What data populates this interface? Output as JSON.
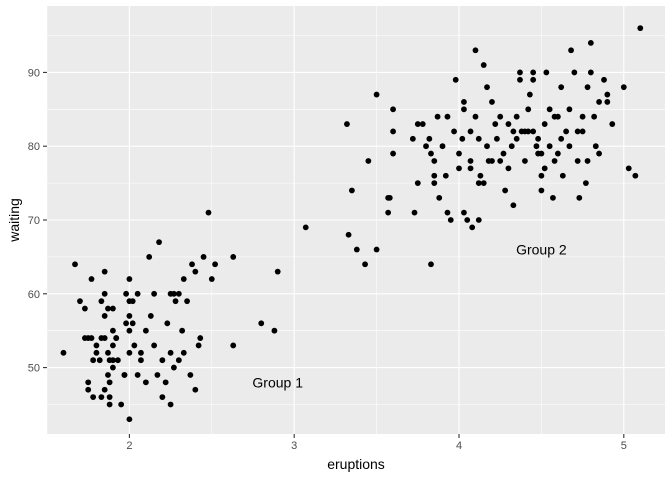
{
  "chart_data": {
    "type": "scatter",
    "xlabel": "eruptions",
    "ylabel": "waiting",
    "xlim": [
      1.5,
      5.25
    ],
    "ylim": [
      41,
      99
    ],
    "x_ticks": [
      2,
      3,
      4,
      5
    ],
    "y_ticks": [
      50,
      60,
      70,
      80,
      90
    ],
    "grid": true,
    "legend": "none",
    "colors": {
      "panel": "#ebebeb",
      "grid_major": "#ffffff",
      "point": "#000000"
    },
    "annotations": [
      {
        "label": "Group 1",
        "x": 2.9,
        "y": 48
      },
      {
        "label": "Group 2",
        "x": 4.5,
        "y": 66
      }
    ],
    "points": [
      [
        1.6,
        52
      ],
      [
        1.67,
        64
      ],
      [
        1.7,
        59
      ],
      [
        1.73,
        54
      ],
      [
        1.75,
        54
      ],
      [
        1.75,
        48
      ],
      [
        1.75,
        47
      ],
      [
        1.77,
        54
      ],
      [
        1.77,
        62
      ],
      [
        1.78,
        46
      ],
      [
        1.8,
        52
      ],
      [
        1.8,
        53
      ],
      [
        1.82,
        51
      ],
      [
        1.83,
        59
      ],
      [
        1.83,
        46
      ],
      [
        1.83,
        54
      ],
      [
        1.85,
        54
      ],
      [
        1.85,
        47
      ],
      [
        1.85,
        60
      ],
      [
        1.85,
        63
      ],
      [
        1.85,
        57
      ],
      [
        1.87,
        49
      ],
      [
        1.87,
        52
      ],
      [
        1.87,
        58
      ],
      [
        1.88,
        51
      ],
      [
        1.88,
        48
      ],
      [
        1.88,
        45
      ],
      [
        1.88,
        46
      ],
      [
        1.9,
        53
      ],
      [
        1.9,
        55
      ],
      [
        1.9,
        51
      ],
      [
        1.9,
        50
      ],
      [
        1.9,
        58
      ],
      [
        1.92,
        54
      ],
      [
        1.93,
        51
      ],
      [
        1.95,
        45
      ],
      [
        1.97,
        49
      ],
      [
        1.97,
        49
      ],
      [
        1.98,
        56
      ],
      [
        1.98,
        60
      ],
      [
        2.0,
        55
      ],
      [
        2.0,
        57
      ],
      [
        2.0,
        52
      ],
      [
        2.0,
        59
      ],
      [
        2.0,
        62
      ],
      [
        2.0,
        43
      ],
      [
        2.02,
        56
      ],
      [
        2.02,
        59
      ],
      [
        2.03,
        53
      ],
      [
        2.05,
        60
      ],
      [
        2.05,
        49
      ],
      [
        2.07,
        51
      ],
      [
        2.07,
        52
      ],
      [
        2.1,
        48
      ],
      [
        2.1,
        55
      ],
      [
        2.12,
        65
      ],
      [
        2.13,
        57
      ],
      [
        2.15,
        53
      ],
      [
        2.15,
        60
      ],
      [
        2.17,
        49
      ],
      [
        2.18,
        67
      ],
      [
        2.2,
        51
      ],
      [
        2.2,
        46
      ],
      [
        2.22,
        48
      ],
      [
        2.23,
        56
      ],
      [
        2.25,
        52
      ],
      [
        2.25,
        45
      ],
      [
        2.27,
        50
      ],
      [
        2.27,
        60
      ],
      [
        2.28,
        59
      ],
      [
        2.3,
        60
      ],
      [
        2.3,
        51
      ],
      [
        2.32,
        55
      ],
      [
        2.33,
        62
      ],
      [
        2.35,
        59
      ],
      [
        2.37,
        49
      ],
      [
        2.38,
        64
      ],
      [
        2.4,
        47
      ],
      [
        2.4,
        63
      ],
      [
        2.42,
        53
      ],
      [
        2.43,
        54
      ],
      [
        2.45,
        65
      ],
      [
        2.48,
        71
      ],
      [
        2.5,
        62
      ],
      [
        2.52,
        64
      ],
      [
        2.63,
        53
      ],
      [
        2.63,
        65
      ],
      [
        2.8,
        56
      ],
      [
        2.88,
        55
      ],
      [
        2.9,
        63
      ],
      [
        3.07,
        69
      ],
      [
        3.32,
        83
      ],
      [
        3.33,
        68
      ],
      [
        3.35,
        74
      ],
      [
        3.38,
        66
      ],
      [
        3.43,
        64
      ],
      [
        3.45,
        78
      ],
      [
        3.5,
        87
      ],
      [
        3.5,
        66
      ],
      [
        3.57,
        71
      ],
      [
        3.58,
        73
      ],
      [
        3.6,
        82
      ],
      [
        3.6,
        85
      ],
      [
        3.6,
        79
      ],
      [
        3.72,
        81
      ],
      [
        3.73,
        71
      ],
      [
        3.75,
        75
      ],
      [
        3.78,
        83
      ],
      [
        3.8,
        80
      ],
      [
        3.82,
        81
      ],
      [
        3.83,
        79
      ],
      [
        3.83,
        64
      ],
      [
        3.85,
        75
      ],
      [
        3.85,
        78
      ],
      [
        3.85,
        76
      ],
      [
        3.87,
        84
      ],
      [
        3.88,
        73
      ],
      [
        3.92,
        76
      ],
      [
        3.93,
        84
      ],
      [
        3.93,
        71
      ],
      [
        3.95,
        70
      ],
      [
        3.97,
        82
      ],
      [
        3.98,
        89
      ],
      [
        4.0,
        77
      ],
      [
        4.0,
        79
      ],
      [
        4.02,
        81
      ],
      [
        4.03,
        86
      ],
      [
        4.03,
        85
      ],
      [
        4.03,
        71
      ],
      [
        4.05,
        70
      ],
      [
        4.07,
        78
      ],
      [
        4.07,
        77
      ],
      [
        4.08,
        69
      ],
      [
        4.1,
        93
      ],
      [
        4.1,
        84
      ],
      [
        4.12,
        70
      ],
      [
        4.12,
        81
      ],
      [
        4.13,
        76
      ],
      [
        4.15,
        75
      ],
      [
        4.15,
        91
      ],
      [
        4.17,
        80
      ],
      [
        4.17,
        88
      ],
      [
        4.18,
        78
      ],
      [
        4.2,
        86
      ],
      [
        4.22,
        83
      ],
      [
        4.23,
        81
      ],
      [
        4.25,
        78
      ],
      [
        4.27,
        79
      ],
      [
        4.28,
        74
      ],
      [
        4.3,
        77
      ],
      [
        4.3,
        83
      ],
      [
        4.32,
        80
      ],
      [
        4.33,
        82
      ],
      [
        4.33,
        72
      ],
      [
        4.35,
        84
      ],
      [
        4.35,
        81
      ],
      [
        4.37,
        90
      ],
      [
        4.37,
        89
      ],
      [
        4.38,
        82
      ],
      [
        4.4,
        78
      ],
      [
        4.4,
        82
      ],
      [
        4.42,
        82
      ],
      [
        4.43,
        87
      ],
      [
        4.45,
        82
      ],
      [
        4.45,
        89
      ],
      [
        4.45,
        90
      ],
      [
        4.47,
        80
      ],
      [
        4.48,
        81
      ],
      [
        4.5,
        79
      ],
      [
        4.5,
        76
      ],
      [
        4.5,
        74
      ],
      [
        4.52,
        83
      ],
      [
        4.53,
        90
      ],
      [
        4.55,
        80
      ],
      [
        4.55,
        85
      ],
      [
        4.57,
        73
      ],
      [
        4.58,
        78
      ],
      [
        4.6,
        84
      ],
      [
        4.6,
        79
      ],
      [
        4.62,
        81
      ],
      [
        4.62,
        88
      ],
      [
        4.63,
        76
      ],
      [
        4.65,
        82
      ],
      [
        4.67,
        85
      ],
      [
        4.68,
        93
      ],
      [
        4.7,
        90
      ],
      [
        4.72,
        78
      ],
      [
        4.73,
        73
      ],
      [
        4.75,
        84
      ],
      [
        4.75,
        82
      ],
      [
        4.77,
        75
      ],
      [
        4.78,
        88
      ],
      [
        4.8,
        90
      ],
      [
        4.8,
        94
      ],
      [
        4.82,
        84
      ],
      [
        4.83,
        80
      ],
      [
        4.85,
        86
      ],
      [
        4.88,
        89
      ],
      [
        4.9,
        86
      ],
      [
        4.9,
        87
      ],
      [
        4.93,
        83
      ],
      [
        5.0,
        88
      ],
      [
        5.03,
        77
      ],
      [
        5.07,
        76
      ],
      [
        5.1,
        96
      ],
      [
        1.73,
        58
      ],
      [
        1.78,
        51
      ],
      [
        1.92,
        54
      ],
      [
        2.25,
        60
      ],
      [
        2.33,
        52
      ],
      [
        3.57,
        73
      ],
      [
        3.75,
        83
      ],
      [
        3.9,
        80
      ],
      [
        4.07,
        82
      ],
      [
        4.12,
        75
      ],
      [
        4.2,
        78
      ],
      [
        4.25,
        84
      ],
      [
        4.42,
        85
      ],
      [
        4.48,
        79
      ],
      [
        4.52,
        77
      ],
      [
        4.58,
        84
      ],
      [
        4.67,
        80
      ],
      [
        4.72,
        82
      ],
      [
        4.78,
        78
      ],
      [
        4.85,
        79
      ]
    ]
  }
}
